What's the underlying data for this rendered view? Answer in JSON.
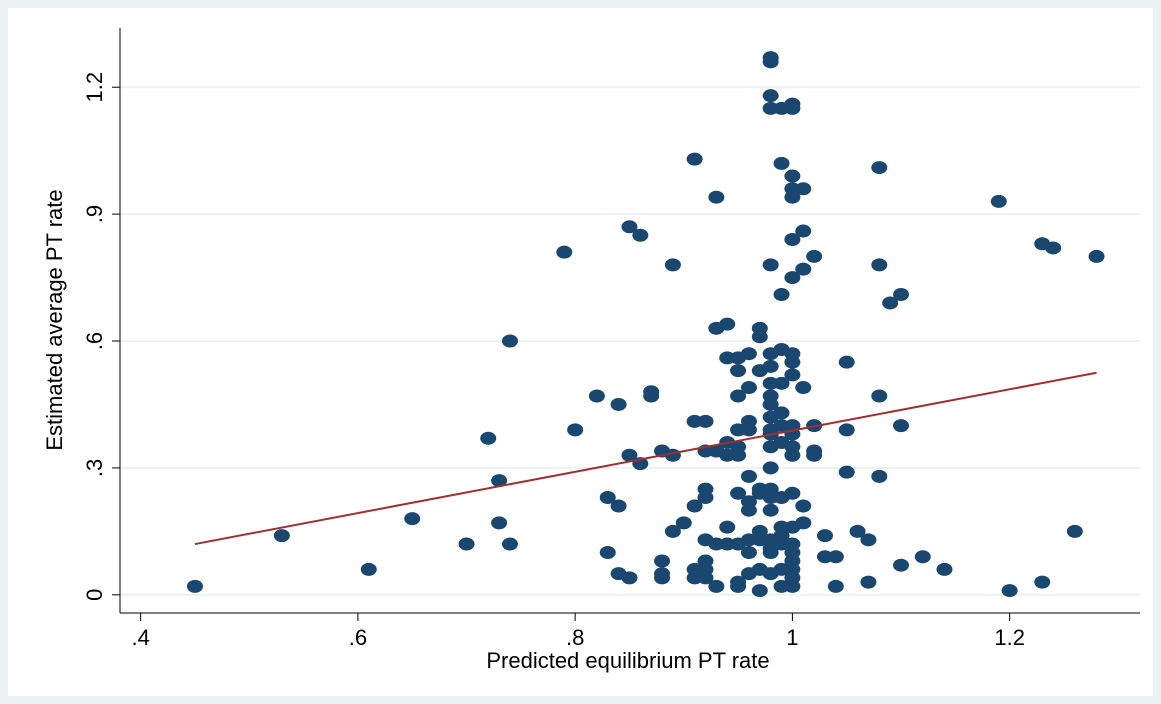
{
  "chart_data": {
    "type": "scatter",
    "x_label": "Predicted equilibrium PT rate",
    "y_label": "Estimated average PT rate",
    "xlim": [
      0.381,
      1.32
    ],
    "ylim": [
      -0.043,
      1.34
    ],
    "xticks": [
      {
        "value": 0.4,
        "label": ".4"
      },
      {
        "value": 0.6,
        "label": ".6"
      },
      {
        "value": 0.8,
        "label": ".8"
      },
      1,
      1.2
    ],
    "yticks": [
      0,
      {
        "value": 0.3,
        "label": ".3"
      },
      {
        "value": 0.6,
        "label": ".6"
      },
      {
        "value": 0.9,
        "label": ".9"
      },
      1.2
    ],
    "grid": true,
    "series": [
      {
        "color": "#1a476f",
        "x": [
          0.45,
          0.53,
          0.61,
          0.65,
          0.7,
          0.72,
          0.73,
          0.73,
          0.74,
          0.74,
          0.79,
          0.8,
          0.82,
          0.83,
          0.83,
          0.84,
          0.84,
          0.84,
          0.85,
          0.85,
          0.85,
          0.86,
          0.86,
          0.87,
          0.87,
          0.88,
          0.88,
          0.88,
          0.88,
          0.89,
          0.89,
          0.89,
          0.9,
          0.91,
          0.91,
          0.91,
          0.91,
          0.91,
          0.92,
          0.92,
          0.92,
          0.92,
          0.92,
          0.92,
          0.92,
          0.92,
          0.93,
          0.93,
          0.93,
          0.93,
          0.93,
          0.94,
          0.94,
          0.94,
          0.94,
          0.94,
          0.94,
          0.95,
          0.95,
          0.95,
          0.95,
          0.95,
          0.95,
          0.95,
          0.95,
          0.95,
          0.95,
          0.96,
          0.96,
          0.96,
          0.96,
          0.96,
          0.96,
          0.96,
          0.96,
          0.96,
          0.96,
          0.97,
          0.97,
          0.97,
          0.97,
          0.97,
          0.97,
          0.97,
          0.97,
          0.97,
          0.98,
          0.98,
          0.98,
          0.98,
          0.98,
          0.98,
          0.98,
          0.98,
          0.98,
          0.98,
          0.98,
          0.98,
          0.98,
          0.98,
          0.98,
          0.98,
          0.98,
          0.98,
          0.98,
          0.98,
          0.98,
          0.98,
          0.99,
          0.99,
          0.99,
          0.99,
          0.99,
          0.99,
          0.99,
          0.99,
          0.99,
          0.99,
          0.99,
          0.99,
          0.99,
          0.99,
          1.0,
          1.0,
          1.0,
          1.0,
          1.0,
          1.0,
          1.0,
          1.0,
          1.0,
          1.0,
          1.0,
          1.0,
          1.0,
          1.0,
          1.0,
          1.0,
          1.0,
          1.0,
          1.0,
          1.0,
          1.0,
          1.0,
          1.01,
          1.01,
          1.01,
          1.01,
          1.01,
          1.01,
          1.02,
          1.02,
          1.02,
          1.02,
          1.03,
          1.03,
          1.04,
          1.04,
          1.05,
          1.05,
          1.05,
          1.06,
          1.07,
          1.07,
          1.08,
          1.08,
          1.08,
          1.08,
          1.09,
          1.1,
          1.1,
          1.1,
          1.12,
          1.14,
          1.19,
          1.2,
          1.23,
          1.23,
          1.24,
          1.26,
          1.28
        ],
        "values": [
          0.02,
          0.14,
          0.06,
          0.18,
          0.12,
          0.37,
          0.27,
          0.17,
          0.12,
          0.6,
          0.81,
          0.39,
          0.47,
          0.23,
          0.1,
          0.21,
          0.45,
          0.05,
          0.04,
          0.33,
          0.87,
          0.85,
          0.31,
          0.48,
          0.47,
          0.34,
          0.08,
          0.05,
          0.04,
          0.78,
          0.33,
          0.15,
          0.17,
          1.03,
          0.41,
          0.21,
          0.04,
          0.06,
          0.41,
          0.34,
          0.25,
          0.23,
          0.13,
          0.08,
          0.06,
          0.04,
          0.94,
          0.63,
          0.34,
          0.12,
          0.02,
          0.64,
          0.56,
          0.36,
          0.33,
          0.16,
          0.12,
          0.56,
          0.53,
          0.47,
          0.39,
          0.35,
          0.33,
          0.24,
          0.12,
          0.03,
          0.02,
          0.57,
          0.49,
          0.41,
          0.39,
          0.28,
          0.22,
          0.2,
          0.13,
          0.1,
          0.05,
          0.63,
          0.61,
          0.53,
          0.25,
          0.24,
          0.15,
          0.13,
          0.06,
          0.01,
          1.27,
          1.26,
          1.18,
          1.15,
          0.78,
          0.57,
          0.54,
          0.5,
          0.47,
          0.45,
          0.42,
          0.39,
          0.38,
          0.35,
          0.3,
          0.25,
          0.23,
          0.2,
          0.13,
          0.11,
          0.1,
          0.05,
          1.15,
          1.02,
          0.71,
          0.58,
          0.5,
          0.43,
          0.4,
          0.36,
          0.23,
          0.16,
          0.14,
          0.12,
          0.06,
          0.02,
          1.16,
          1.15,
          0.99,
          0.96,
          0.94,
          0.84,
          0.75,
          0.57,
          0.55,
          0.52,
          0.4,
          0.38,
          0.35,
          0.33,
          0.24,
          0.16,
          0.12,
          0.1,
          0.08,
          0.06,
          0.04,
          0.02,
          0.96,
          0.86,
          0.77,
          0.49,
          0.21,
          0.17,
          0.8,
          0.4,
          0.34,
          0.33,
          0.14,
          0.09,
          0.09,
          0.02,
          0.55,
          0.39,
          0.29,
          0.15,
          0.13,
          0.03,
          1.01,
          0.78,
          0.47,
          0.28,
          0.69,
          0.71,
          0.4,
          0.07,
          0.09,
          0.06,
          0.93,
          0.01,
          0.83,
          0.03,
          0.82,
          0.15,
          0.8
        ]
      }
    ],
    "fit": {
      "color": "#a03030",
      "x": [
        0.45,
        1.28
      ],
      "values": [
        0.12,
        0.525
      ]
    }
  }
}
